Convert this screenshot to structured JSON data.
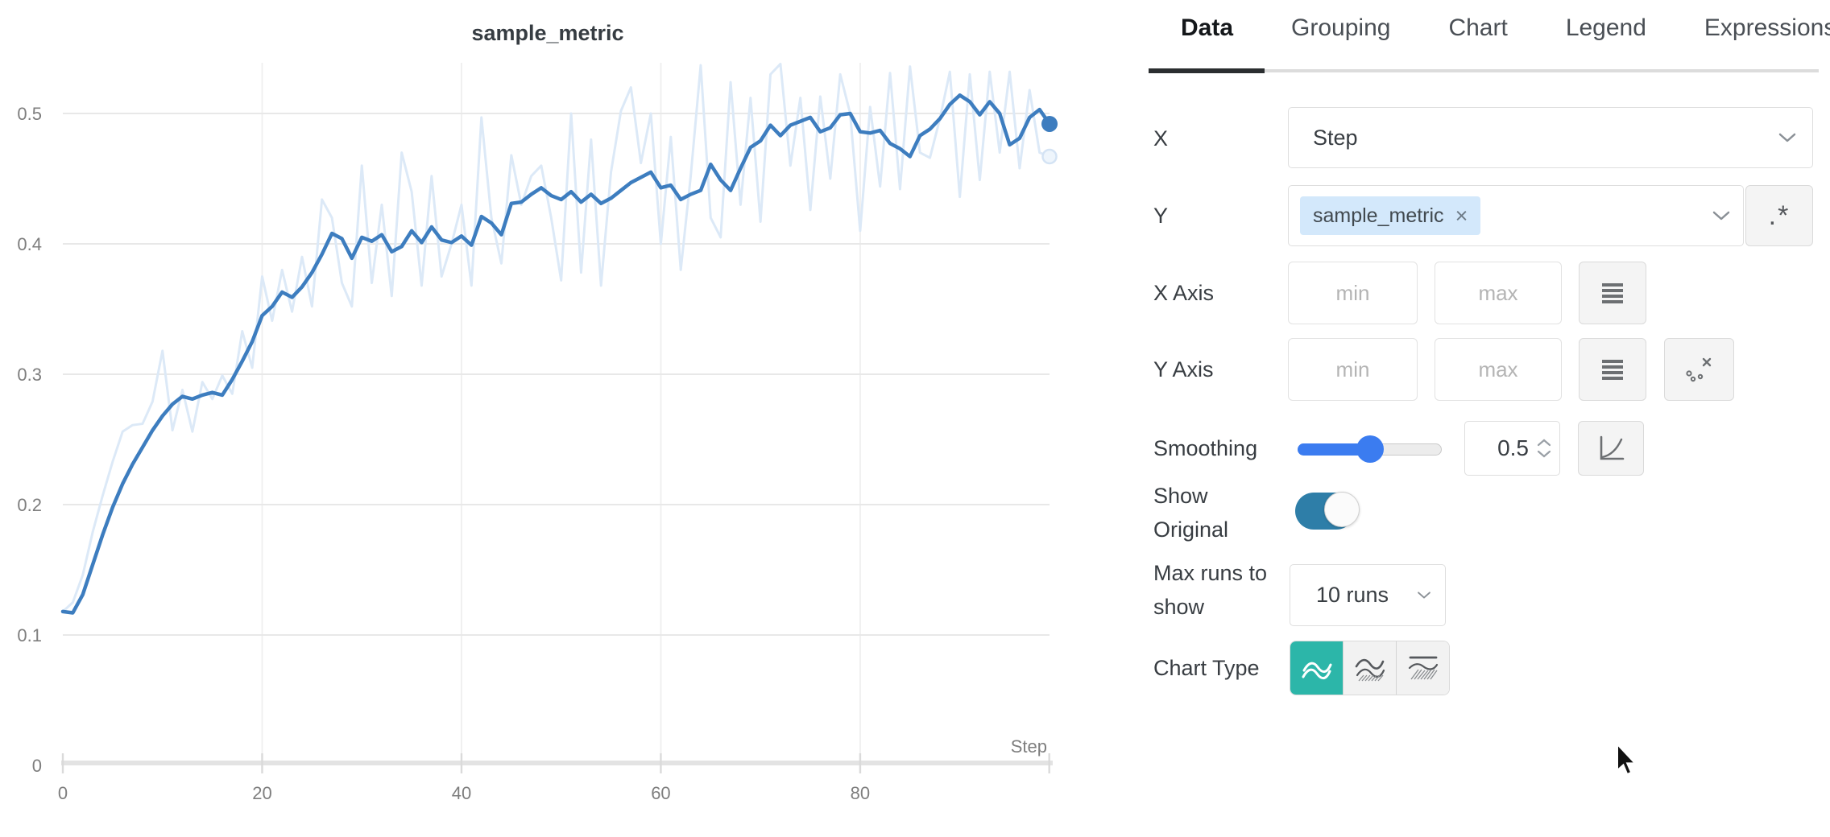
{
  "panel": {
    "tabs": [
      {
        "label": "Data",
        "active": true
      },
      {
        "label": "Grouping",
        "active": false
      },
      {
        "label": "Chart",
        "active": false
      },
      {
        "label": "Legend",
        "active": false
      },
      {
        "label": "Expressions",
        "active": false
      }
    ],
    "fields": {
      "x": {
        "label": "X",
        "value": "Step"
      },
      "y": {
        "label": "Y",
        "tag": "sample_metric",
        "tag_remove": "×",
        "regex_button": ".*"
      },
      "x_axis": {
        "label": "X Axis",
        "min_placeholder": "min",
        "max_placeholder": "max"
      },
      "y_axis": {
        "label": "Y Axis",
        "min_placeholder": "min",
        "max_placeholder": "max"
      },
      "smoothing": {
        "label": "Smoothing",
        "value": "0.5"
      },
      "show_original": {
        "label_line1": "Show",
        "label_line2": "Original",
        "enabled": true
      },
      "max_runs": {
        "label_line1": "Max runs to",
        "label_line2": "show",
        "value": "10 runs"
      },
      "chart_type": {
        "label": "Chart Type",
        "selected_index": 0,
        "options": [
          "line-plot",
          "area-plot",
          "minmax-plot"
        ]
      }
    },
    "colors": {
      "slider_blue": "#3b7cf0",
      "toggle_teal": "#2e7ea8",
      "chart_type_teal": "#2cb6a9",
      "tag_blue_bg": "#d3e8fb"
    }
  },
  "chart_data": {
    "type": "line",
    "title": "sample_metric",
    "xlabel": "Step",
    "ylabel": "",
    "x_ticks": [
      0,
      20,
      40,
      60,
      80
    ],
    "y_ticks": [
      0,
      0.1,
      0.2,
      0.3,
      0.4,
      0.5
    ],
    "xlim": [
      0,
      99
    ],
    "ylim": [
      0,
      0.55
    ],
    "grid": true,
    "legend": "none",
    "x": "steps 0..99",
    "series": [
      {
        "name": "sample_metric (original)",
        "color": "#dce9f7",
        "width": 3,
        "end_dot": "ring",
        "values": [
          0.118,
          0.125,
          0.146,
          0.179,
          0.207,
          0.233,
          0.256,
          0.261,
          0.262,
          0.279,
          0.318,
          0.257,
          0.288,
          0.256,
          0.294,
          0.281,
          0.299,
          0.285,
          0.333,
          0.305,
          0.375,
          0.341,
          0.38,
          0.348,
          0.39,
          0.352,
          0.434,
          0.42,
          0.37,
          0.352,
          0.46,
          0.37,
          0.43,
          0.36,
          0.47,
          0.44,
          0.368,
          0.452,
          0.375,
          0.4,
          0.43,
          0.368,
          0.497,
          0.42,
          0.385,
          0.468,
          0.43,
          0.452,
          0.46,
          0.42,
          0.372,
          0.5,
          0.378,
          0.48,
          0.368,
          0.455,
          0.502,
          0.52,
          0.462,
          0.5,
          0.4,
          0.482,
          0.38,
          0.452,
          0.537,
          0.42,
          0.405,
          0.524,
          0.43,
          0.512,
          0.417,
          0.53,
          0.538,
          0.46,
          0.512,
          0.426,
          0.513,
          0.45,
          0.53,
          0.5,
          0.41,
          0.505,
          0.444,
          0.531,
          0.442,
          0.536,
          0.47,
          0.466,
          0.496,
          0.532,
          0.436,
          0.53,
          0.449,
          0.532,
          0.47,
          0.532,
          0.458,
          0.518,
          0.47,
          0.467
        ]
      },
      {
        "name": "sample_metric (smoothed)",
        "color": "#3d7dbf",
        "width": 4.5,
        "end_dot": "solid",
        "values": [
          0.118,
          0.117,
          0.131,
          0.154,
          0.177,
          0.198,
          0.216,
          0.231,
          0.244,
          0.257,
          0.268,
          0.277,
          0.283,
          0.281,
          0.284,
          0.286,
          0.284,
          0.296,
          0.31,
          0.325,
          0.345,
          0.352,
          0.363,
          0.359,
          0.367,
          0.378,
          0.392,
          0.408,
          0.404,
          0.389,
          0.405,
          0.402,
          0.407,
          0.394,
          0.398,
          0.41,
          0.401,
          0.413,
          0.403,
          0.401,
          0.406,
          0.399,
          0.421,
          0.416,
          0.407,
          0.431,
          0.432,
          0.438,
          0.443,
          0.437,
          0.434,
          0.44,
          0.432,
          0.438,
          0.431,
          0.435,
          0.441,
          0.447,
          0.451,
          0.455,
          0.443,
          0.445,
          0.434,
          0.438,
          0.441,
          0.461,
          0.449,
          0.441,
          0.458,
          0.474,
          0.479,
          0.491,
          0.483,
          0.491,
          0.494,
          0.497,
          0.486,
          0.489,
          0.499,
          0.5,
          0.486,
          0.485,
          0.487,
          0.477,
          0.473,
          0.467,
          0.483,
          0.488,
          0.496,
          0.507,
          0.514,
          0.509,
          0.499,
          0.509,
          0.5,
          0.476,
          0.481,
          0.497,
          0.503,
          0.492
        ]
      }
    ]
  }
}
